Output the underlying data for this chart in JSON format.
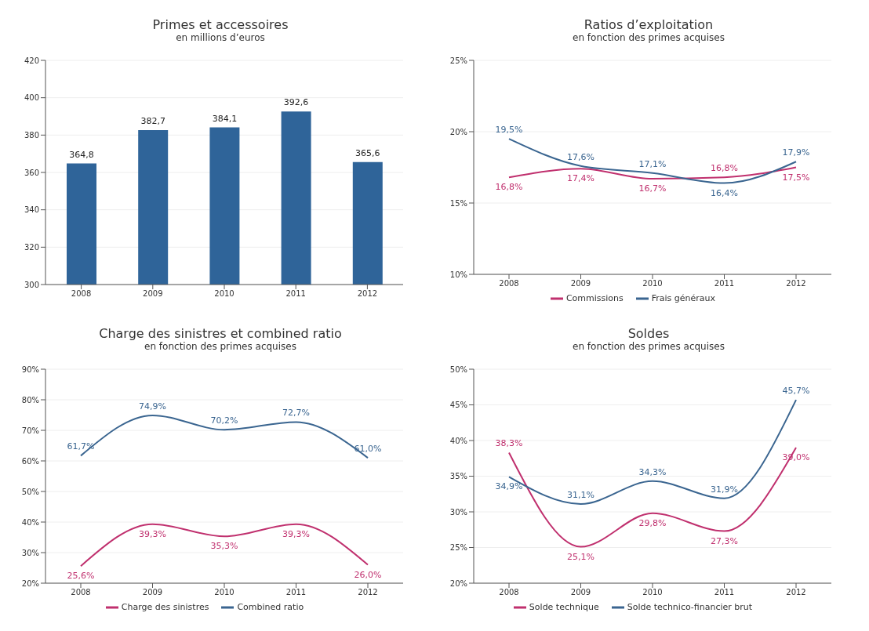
{
  "chart_data": [
    {
      "type": "bar",
      "title": "Primes et accessoires",
      "subtitle": "en millions d’euros",
      "categories": [
        "2008",
        "2009",
        "2010",
        "2011",
        "2012"
      ],
      "series": [
        {
          "color": "#2f6499",
          "values": [
            364.8,
            382.7,
            384.1,
            392.6,
            365.6
          ],
          "value_labels": [
            "364,8",
            "382,7",
            "384,1",
            "392,6",
            "365,6"
          ]
        }
      ],
      "ylim": [
        300,
        420
      ],
      "yticks": [
        300,
        320,
        340,
        360,
        380,
        400,
        420
      ],
      "grid": "y"
    },
    {
      "type": "line",
      "title": "Ratios d’exploitation",
      "subtitle": "en fonction des primes acquises",
      "categories": [
        "2008",
        "2009",
        "2010",
        "2011",
        "2012"
      ],
      "series": [
        {
          "name": "Commissions",
          "color": "#c0306e",
          "values": [
            16.8,
            17.4,
            16.7,
            16.8,
            17.5
          ],
          "value_labels": [
            "16,8%",
            "17,4%",
            "16,7%",
            "16,8%",
            "17,5%"
          ]
        },
        {
          "name": "Frais généraux",
          "color": "#3a6590",
          "values": [
            19.5,
            17.6,
            17.1,
            16.4,
            17.9
          ],
          "value_labels": [
            "19,5%",
            "17,6%",
            "17,1%",
            "16,4%",
            "17,9%"
          ]
        }
      ],
      "ylim": [
        10,
        25
      ],
      "yticks": [
        {
          "value": 10,
          "label": "10%"
        },
        {
          "value": 15,
          "label": "15%"
        },
        {
          "value": 20,
          "label": "20%"
        },
        {
          "value": 25,
          "label": "25%"
        }
      ],
      "grid": "y",
      "legend": "bottom"
    },
    {
      "type": "line",
      "title": "Charge des sinistres et combined ratio",
      "subtitle": "en fonction des primes acquises",
      "categories": [
        "2008",
        "2009",
        "2010",
        "2011",
        "2012"
      ],
      "series": [
        {
          "name": "Charge des sinistres",
          "color": "#c0306e",
          "values": [
            25.6,
            39.3,
            35.3,
            39.3,
            26.0
          ],
          "value_labels": [
            "25,6%",
            "39,3%",
            "35,3%",
            "39,3%",
            "26,0%"
          ]
        },
        {
          "name": "Combined ratio",
          "color": "#3a6590",
          "values": [
            61.7,
            74.9,
            70.2,
            72.7,
            61.0
          ],
          "value_labels": [
            "61,7%",
            "74,9%",
            "70,2%",
            "72,7%",
            "61,0%"
          ]
        }
      ],
      "ylim": [
        20,
        90
      ],
      "yticks": [
        {
          "value": 20,
          "label": "20%"
        },
        {
          "value": 30,
          "label": "30%"
        },
        {
          "value": 40,
          "label": "40%"
        },
        {
          "value": 50,
          "label": "50%"
        },
        {
          "value": 60,
          "label": "60%"
        },
        {
          "value": 70,
          "label": "70%"
        },
        {
          "value": 80,
          "label": "80%"
        },
        {
          "value": 90,
          "label": "90%"
        }
      ],
      "grid": "y",
      "legend": "bottom"
    },
    {
      "type": "line",
      "title": "Soldes",
      "subtitle": "en fonction des primes acquises",
      "categories": [
        "2008",
        "2009",
        "2010",
        "2011",
        "2012"
      ],
      "series": [
        {
          "name": "Solde technique",
          "color": "#c0306e",
          "values": [
            38.3,
            25.1,
            29.8,
            27.3,
            39.0
          ],
          "value_labels": [
            "38,3%",
            "25,1%",
            "29,8%",
            "27,3%",
            "39,0%"
          ]
        },
        {
          "name": "Solde technico-financier brut",
          "color": "#3a6590",
          "values": [
            34.9,
            31.1,
            34.3,
            31.9,
            45.7
          ],
          "value_labels": [
            "34,9%",
            "31,1%",
            "34,3%",
            "31,9%",
            "45,7%"
          ]
        }
      ],
      "ylim": [
        20,
        50
      ],
      "yticks": [
        {
          "value": 20,
          "label": "20%"
        },
        {
          "value": 25,
          "label": "25%"
        },
        {
          "value": 30,
          "label": "30%"
        },
        {
          "value": 35,
          "label": "35%"
        },
        {
          "value": 40,
          "label": "40%"
        },
        {
          "value": 45,
          "label": "45%"
        },
        {
          "value": 50,
          "label": "50%"
        }
      ],
      "grid": "y",
      "legend": "bottom"
    }
  ]
}
